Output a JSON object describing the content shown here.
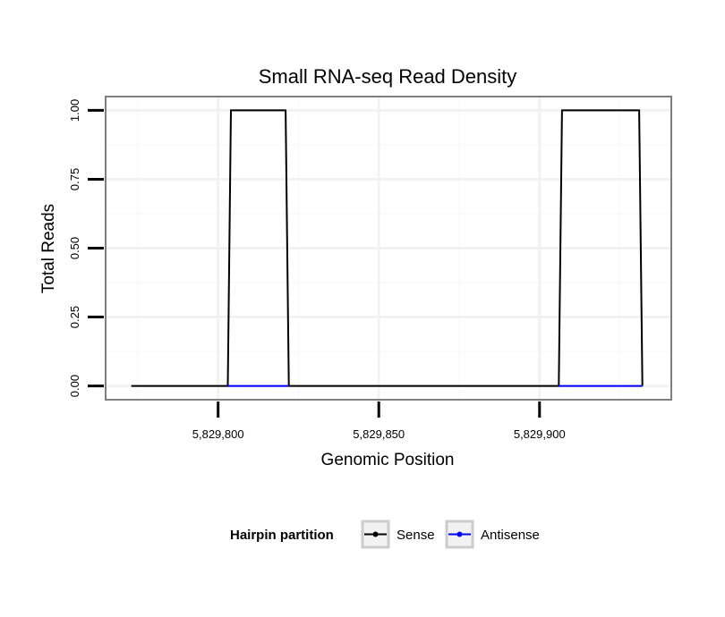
{
  "chart_data": {
    "type": "line",
    "title": "Small RNA-seq Read Density",
    "xlabel": "Genomic Position",
    "ylabel": "Total Reads",
    "xlim": [
      5829765,
      5829941
    ],
    "ylim": [
      -0.05,
      1.05
    ],
    "x_ticks": [
      5829800,
      5829850,
      5829900
    ],
    "x_tick_labels": [
      "5,829,800",
      "5,829,850",
      "5,829,900"
    ],
    "y_ticks": [
      0,
      0.25,
      0.5,
      0.75,
      1
    ],
    "y_tick_labels": [
      "0.00",
      "0.25",
      "0.50",
      "0.75",
      "1.00"
    ],
    "grid": true,
    "legend_position": "bottom",
    "legend_title": "Hairpin partition",
    "series": [
      {
        "name": "Sense",
        "color": "#000000",
        "x": [
          5829773,
          5829803,
          5829804,
          5829821,
          5829822,
          5829906,
          5829907,
          5829931,
          5829932
        ],
        "y": [
          0,
          0,
          1,
          1,
          0,
          0,
          1,
          1,
          0
        ]
      },
      {
        "name": "Antisense",
        "color": "#0000ff",
        "x": [
          5829803,
          5829822,
          5829906,
          5829932
        ],
        "y": [
          0,
          0,
          0,
          0
        ],
        "segments": [
          [
            0,
            1
          ],
          [
            2,
            3
          ]
        ]
      }
    ]
  }
}
